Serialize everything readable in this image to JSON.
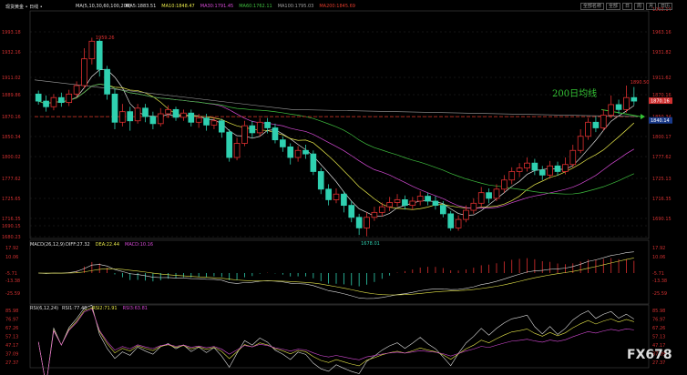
{
  "header": {
    "symbol": "现货黄金 • 日线 •",
    "ma_label": "MA(5,10,30,60,100,200)",
    "ma_values": [
      {
        "text": "MA5:1883.51",
        "color": "#e0e0e0"
      },
      {
        "text": "MA10:1848.47",
        "color": "#e8e84a"
      },
      {
        "text": "MA30:1791.45",
        "color": "#d64ad6"
      },
      {
        "text": "MA60:1762.11",
        "color": "#3fbf3f"
      },
      {
        "text": "MA100:1795.03",
        "color": "#a0a0a0"
      },
      {
        "text": "MA200:1845.69",
        "color": "#e03a2a"
      }
    ],
    "buttons": [
      "全部名称",
      "全部",
      "日",
      "周",
      "月",
      "日历"
    ]
  },
  "macd_header": {
    "label": "MACD(26,12,9)",
    "items": [
      {
        "text": "DIFF:27.32",
        "color": "#e0e0e0"
      },
      {
        "text": "DEA:22.44",
        "color": "#e8e84a"
      },
      {
        "text": "MACD:10.16",
        "color": "#d64ad6"
      }
    ]
  },
  "rsi_header": {
    "label": "RSI(6,12,24)",
    "items": [
      {
        "text": "RSI1:77.48",
        "color": "#e0e0e0"
      },
      {
        "text": "RSI2:71.91",
        "color": "#e8e84a"
      },
      {
        "text": "RSI3:63.81",
        "color": "#d64ad6"
      }
    ]
  },
  "annotation_200": "200日均线",
  "watermark": "FX678",
  "chart_data": {
    "type": "candlestick",
    "price_ticks_left": [
      "1993.18",
      "1932.16",
      "1911.02",
      "1889.86",
      "1870.16",
      "1850.34",
      "1800.02",
      "1777.62",
      "1725.65",
      "1716.35",
      "1690.15",
      "1680.23"
    ],
    "price_ticks_right": [
      "1993.14",
      "1963.16",
      "1931.82",
      "1911.62",
      "1870.16",
      "1850.34",
      "1800.17",
      "1777.62",
      "1725.13",
      "1716.35",
      "1690.15"
    ],
    "price_range": [
      1675,
      1998
    ],
    "high_label": "1959.26",
    "low_label": "1678.01",
    "last_high_label": "1890.50",
    "last_price_tag": "1870.16",
    "last_price_tag2": "1840.14",
    "candles": [
      [
        1880,
        1870,
        1885,
        1865
      ],
      [
        1870,
        1862,
        1878,
        1855
      ],
      [
        1862,
        1875,
        1880,
        1857
      ],
      [
        1875,
        1868,
        1882,
        1862
      ],
      [
        1868,
        1880,
        1886,
        1863
      ],
      [
        1880,
        1892,
        1898,
        1875
      ],
      [
        1892,
        1930,
        1945,
        1888
      ],
      [
        1930,
        1955,
        1960,
        1922
      ],
      [
        1955,
        1915,
        1958,
        1905
      ],
      [
        1915,
        1880,
        1920,
        1872
      ],
      [
        1880,
        1840,
        1887,
        1830
      ],
      [
        1840,
        1855,
        1866,
        1834
      ],
      [
        1855,
        1842,
        1862,
        1828
      ],
      [
        1842,
        1860,
        1866,
        1838
      ],
      [
        1860,
        1848,
        1866,
        1840
      ],
      [
        1848,
        1838,
        1855,
        1830
      ],
      [
        1838,
        1852,
        1860,
        1834
      ],
      [
        1852,
        1858,
        1864,
        1846
      ],
      [
        1858,
        1847,
        1862,
        1842
      ],
      [
        1847,
        1853,
        1858,
        1842
      ],
      [
        1853,
        1840,
        1858,
        1834
      ],
      [
        1840,
        1846,
        1852,
        1832
      ],
      [
        1846,
        1836,
        1852,
        1828
      ],
      [
        1836,
        1842,
        1848,
        1830
      ],
      [
        1842,
        1826,
        1845,
        1818
      ],
      [
        1826,
        1790,
        1830,
        1784
      ],
      [
        1790,
        1810,
        1818,
        1786
      ],
      [
        1810,
        1835,
        1842,
        1806
      ],
      [
        1835,
        1825,
        1842,
        1818
      ],
      [
        1825,
        1840,
        1846,
        1820
      ],
      [
        1840,
        1832,
        1846,
        1824
      ],
      [
        1832,
        1815,
        1838,
        1810
      ],
      [
        1815,
        1805,
        1820,
        1798
      ],
      [
        1805,
        1790,
        1810,
        1780
      ],
      [
        1790,
        1800,
        1806,
        1784
      ],
      [
        1800,
        1795,
        1808,
        1788
      ],
      [
        1795,
        1770,
        1800,
        1765
      ],
      [
        1770,
        1745,
        1775,
        1738
      ],
      [
        1745,
        1730,
        1752,
        1722
      ],
      [
        1730,
        1738,
        1746,
        1725
      ],
      [
        1738,
        1722,
        1742,
        1712
      ],
      [
        1722,
        1705,
        1728,
        1698
      ],
      [
        1705,
        1690,
        1710,
        1680
      ],
      [
        1690,
        1705,
        1712,
        1678
      ],
      [
        1705,
        1712,
        1720,
        1700
      ],
      [
        1712,
        1720,
        1726,
        1706
      ],
      [
        1720,
        1726,
        1734,
        1714
      ],
      [
        1726,
        1730,
        1738,
        1720
      ],
      [
        1730,
        1722,
        1736,
        1716
      ],
      [
        1722,
        1728,
        1734,
        1716
      ],
      [
        1728,
        1735,
        1742,
        1722
      ],
      [
        1735,
        1728,
        1740,
        1722
      ],
      [
        1728,
        1722,
        1735,
        1716
      ],
      [
        1722,
        1710,
        1728,
        1705
      ],
      [
        1710,
        1690,
        1714,
        1686
      ],
      [
        1690,
        1702,
        1708,
        1686
      ],
      [
        1702,
        1715,
        1722,
        1698
      ],
      [
        1715,
        1725,
        1732,
        1710
      ],
      [
        1725,
        1740,
        1748,
        1720
      ],
      [
        1740,
        1732,
        1746,
        1725
      ],
      [
        1732,
        1745,
        1752,
        1728
      ],
      [
        1745,
        1758,
        1765,
        1740
      ],
      [
        1758,
        1770,
        1776,
        1752
      ],
      [
        1770,
        1775,
        1782,
        1762
      ],
      [
        1775,
        1782,
        1790,
        1770
      ],
      [
        1782,
        1772,
        1788,
        1765
      ],
      [
        1772,
        1765,
        1778,
        1758
      ],
      [
        1765,
        1778,
        1785,
        1760
      ],
      [
        1778,
        1770,
        1784,
        1764
      ],
      [
        1770,
        1780,
        1790,
        1766
      ],
      [
        1780,
        1800,
        1808,
        1776
      ],
      [
        1800,
        1820,
        1830,
        1796
      ],
      [
        1820,
        1840,
        1846,
        1815
      ],
      [
        1840,
        1832,
        1848,
        1826
      ],
      [
        1832,
        1850,
        1858,
        1828
      ],
      [
        1850,
        1865,
        1878,
        1846
      ],
      [
        1865,
        1858,
        1872,
        1852
      ],
      [
        1858,
        1875,
        1892,
        1854
      ],
      [
        1875,
        1870,
        1890,
        1864
      ]
    ],
    "macd_ticks": [
      "17.92",
      "10.06",
      "-5.71",
      "-13.38",
      "-25.59"
    ],
    "rsi_ticks": [
      "85.98",
      "76.97",
      "67.26",
      "57.13",
      "47.17",
      "37.09",
      "27.37"
    ]
  }
}
